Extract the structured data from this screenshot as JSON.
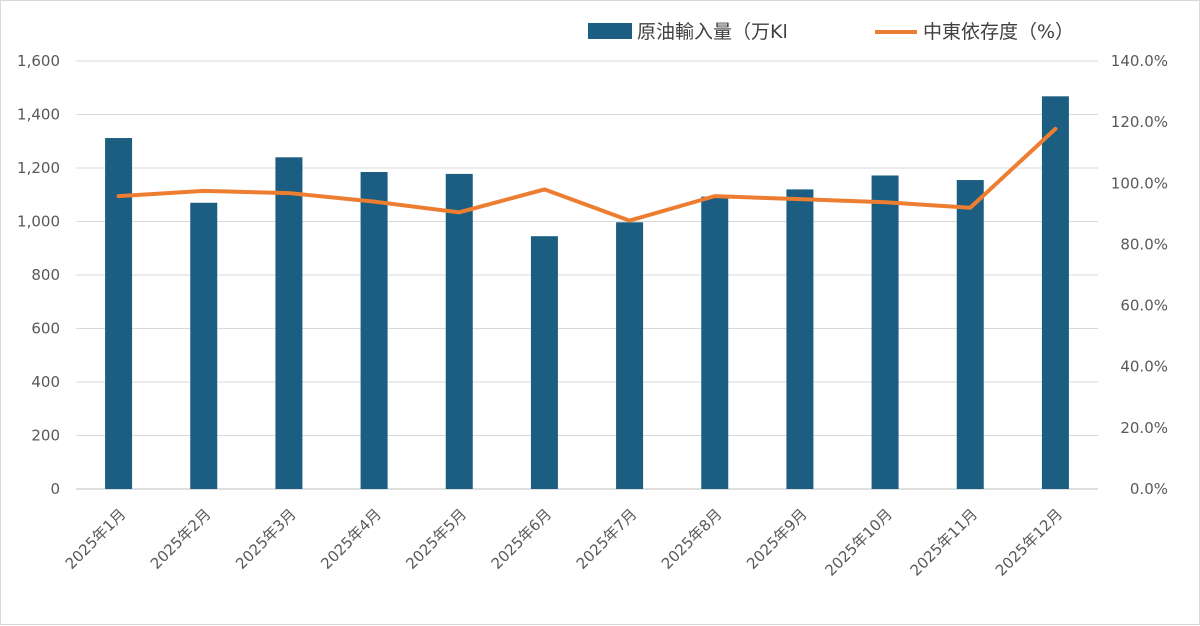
{
  "chart_data": {
    "type": "bar+line",
    "categories": [
      "2025年1月",
      "2025年2月",
      "2025年3月",
      "2025年4月",
      "2025年5月",
      "2025年6月",
      "2025年7月",
      "2025年8月",
      "2025年9月",
      "2025年10月",
      "2025年11月",
      "2025年12月"
    ],
    "series": [
      {
        "name": "原油輸入量（万Kl",
        "type": "bar",
        "axis": "left",
        "color": "#1b5e82",
        "values": [
          1312,
          1070,
          1240,
          1185,
          1178,
          945,
          997,
          1093,
          1120,
          1172,
          1155,
          1468
        ]
      },
      {
        "name": "中東依存度（%）",
        "type": "line",
        "axis": "right",
        "color": "#ed7d31",
        "values": [
          95.8,
          97.5,
          96.8,
          94.0,
          90.5,
          98.0,
          87.8,
          95.8,
          94.8,
          93.8,
          92.0,
          117.8
        ]
      }
    ],
    "y_left": {
      "min": 0,
      "max": 1600,
      "step": 200,
      "tick_labels": [
        "0",
        "200",
        "400",
        "600",
        "800",
        "1,000",
        "1,200",
        "1,400",
        "1,600"
      ]
    },
    "y_right": {
      "min": 0,
      "max": 140,
      "step": 20,
      "tick_labels": [
        "0.0%",
        "20.0%",
        "40.0%",
        "60.0%",
        "80.0%",
        "100.0%",
        "120.0%",
        "140.0%"
      ]
    },
    "grid": true,
    "legend_position": "top-right",
    "title": "",
    "xlabel": "",
    "ylabel": ""
  }
}
